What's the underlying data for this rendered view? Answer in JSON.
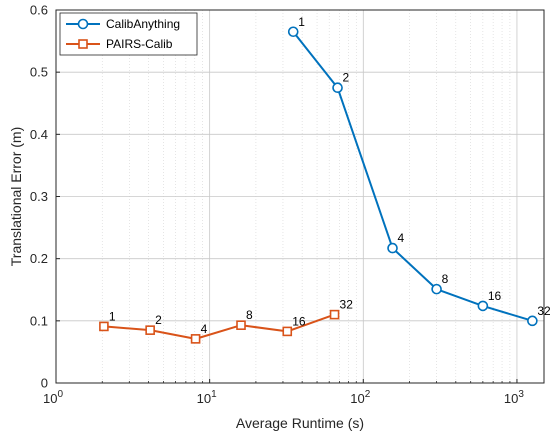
{
  "chart_data": {
    "type": "line",
    "xlabel": "Average Runtime (s)",
    "ylabel": "Translational Error (m)",
    "xscale": "log",
    "xlim": [
      1,
      1500
    ],
    "ylim": [
      0,
      0.6
    ],
    "x_ticks": [
      {
        "value": 1,
        "base": "10",
        "exp": "0"
      },
      {
        "value": 10,
        "base": "10",
        "exp": "1"
      },
      {
        "value": 100,
        "base": "10",
        "exp": "2"
      },
      {
        "value": 1000,
        "base": "10",
        "exp": "3"
      }
    ],
    "y_ticks": [
      {
        "value": 0,
        "label": "0"
      },
      {
        "value": 0.1,
        "label": "0.1"
      },
      {
        "value": 0.2,
        "label": "0.2"
      },
      {
        "value": 0.3,
        "label": "0.3"
      },
      {
        "value": 0.4,
        "label": "0.4"
      },
      {
        "value": 0.5,
        "label": "0.5"
      },
      {
        "value": 0.6,
        "label": "0.6"
      }
    ],
    "grid": true,
    "legend_position": "top-left",
    "series": [
      {
        "name": "CalibAnything",
        "color": "#0072BD",
        "marker": "circle",
        "points": [
          {
            "x": 35,
            "y": 0.565,
            "label": "1"
          },
          {
            "x": 68,
            "y": 0.475,
            "label": "2"
          },
          {
            "x": 155,
            "y": 0.217,
            "label": "4"
          },
          {
            "x": 300,
            "y": 0.151,
            "label": "8"
          },
          {
            "x": 600,
            "y": 0.124,
            "label": "16"
          },
          {
            "x": 1260,
            "y": 0.1,
            "label": "32"
          }
        ]
      },
      {
        "name": "PAIRS-Calib",
        "color": "#D95319",
        "marker": "square",
        "points": [
          {
            "x": 2.05,
            "y": 0.091,
            "label": "1"
          },
          {
            "x": 4.1,
            "y": 0.085,
            "label": "2"
          },
          {
            "x": 8.1,
            "y": 0.071,
            "label": "4"
          },
          {
            "x": 16,
            "y": 0.093,
            "label": "8"
          },
          {
            "x": 32,
            "y": 0.083,
            "label": "16"
          },
          {
            "x": 65,
            "y": 0.11,
            "label": "32"
          }
        ]
      }
    ]
  }
}
